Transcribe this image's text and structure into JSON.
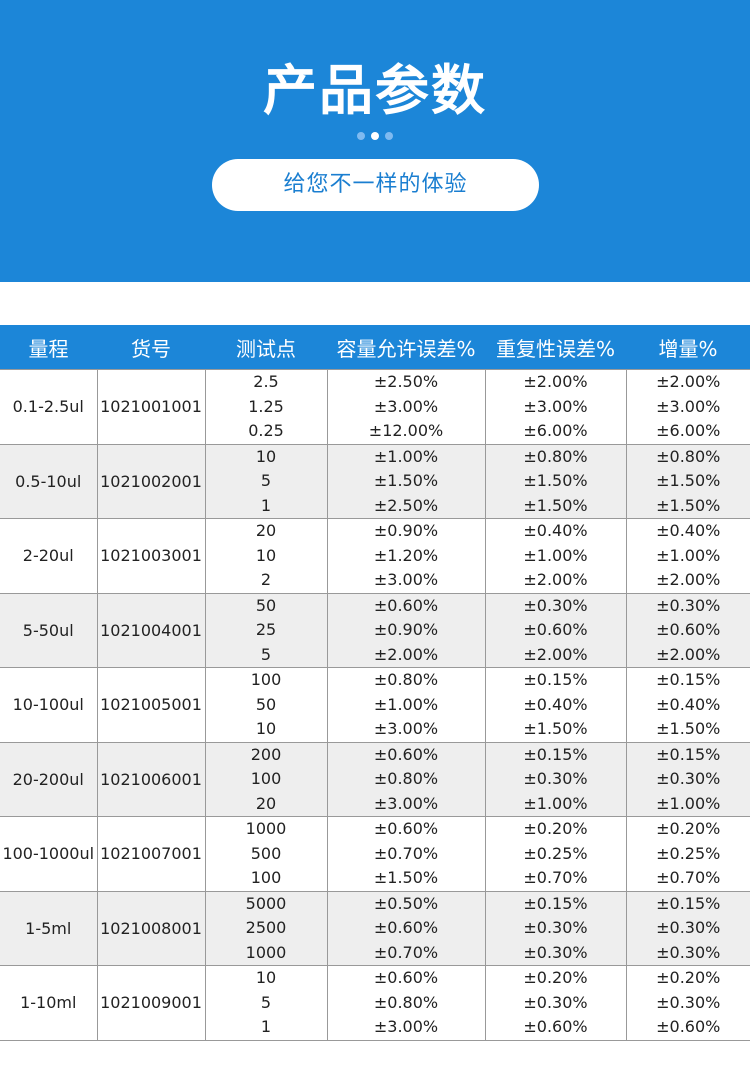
{
  "header": {
    "title": "产品参数",
    "subtitle": "给您不一样的体验"
  },
  "table": {
    "columns": [
      "量程",
      "货号",
      "测试点",
      "容量允许误差%",
      "重复性误差%",
      "增量%"
    ],
    "rows": [
      {
        "range": "0.1-2.5ul",
        "code": "1021001001",
        "points": [
          "2.5",
          "1.25",
          "0.25"
        ],
        "volume_error": [
          "±2.50%",
          "±3.00%",
          "±12.00%"
        ],
        "repeat_error": [
          "±2.00%",
          "±3.00%",
          "±6.00%"
        ],
        "increment": [
          "±2.00%",
          "±3.00%",
          "±6.00%"
        ]
      },
      {
        "range": "0.5-10ul",
        "code": "1021002001",
        "points": [
          "10",
          "5",
          "1"
        ],
        "volume_error": [
          "±1.00%",
          "±1.50%",
          "±2.50%"
        ],
        "repeat_error": [
          "±0.80%",
          "±1.50%",
          "±1.50%"
        ],
        "increment": [
          "±0.80%",
          "±1.50%",
          "±1.50%"
        ]
      },
      {
        "range": "2-20ul",
        "code": "1021003001",
        "points": [
          "20",
          "10",
          "2"
        ],
        "volume_error": [
          "±0.90%",
          "±1.20%",
          "±3.00%"
        ],
        "repeat_error": [
          "±0.40%",
          "±1.00%",
          "±2.00%"
        ],
        "increment": [
          "±0.40%",
          "±1.00%",
          "±2.00%"
        ]
      },
      {
        "range": "5-50ul",
        "code": "1021004001",
        "points": [
          "50",
          "25",
          "5"
        ],
        "volume_error": [
          "±0.60%",
          "±0.90%",
          "±2.00%"
        ],
        "repeat_error": [
          "±0.30%",
          "±0.60%",
          "±2.00%"
        ],
        "increment": [
          "±0.30%",
          "±0.60%",
          "±2.00%"
        ]
      },
      {
        "range": "10-100ul",
        "code": "1021005001",
        "points": [
          "100",
          "50",
          "10"
        ],
        "volume_error": [
          "±0.80%",
          "±1.00%",
          "±3.00%"
        ],
        "repeat_error": [
          "±0.15%",
          "±0.40%",
          "±1.50%"
        ],
        "increment": [
          "±0.15%",
          "±0.40%",
          "±1.50%"
        ]
      },
      {
        "range": "20-200ul",
        "code": "1021006001",
        "points": [
          "200",
          "100",
          "20"
        ],
        "volume_error": [
          "±0.60%",
          "±0.80%",
          "±3.00%"
        ],
        "repeat_error": [
          "±0.15%",
          "±0.30%",
          "±1.00%"
        ],
        "increment": [
          "±0.15%",
          "±0.30%",
          "±1.00%"
        ]
      },
      {
        "range": "100-1000ul",
        "code": "1021007001",
        "points": [
          "1000",
          "500",
          "100"
        ],
        "volume_error": [
          "±0.60%",
          "±0.70%",
          "±1.50%"
        ],
        "repeat_error": [
          "±0.20%",
          "±0.25%",
          "±0.70%"
        ],
        "increment": [
          "±0.20%",
          "±0.25%",
          "±0.70%"
        ]
      },
      {
        "range": "1-5ml",
        "code": "1021008001",
        "points": [
          "5000",
          "2500",
          "1000"
        ],
        "volume_error": [
          "±0.50%",
          "±0.60%",
          "±0.70%"
        ],
        "repeat_error": [
          "±0.15%",
          "±0.30%",
          "±0.30%"
        ],
        "increment": [
          "±0.15%",
          "±0.30%",
          "±0.30%"
        ]
      },
      {
        "range": "1-10ml",
        "code": "1021009001",
        "points": [
          "10",
          "5",
          "1"
        ],
        "volume_error": [
          "±0.60%",
          "±0.80%",
          "±3.00%"
        ],
        "repeat_error": [
          "±0.20%",
          "±0.30%",
          "±0.60%"
        ],
        "increment": [
          "±0.20%",
          "±0.30%",
          "±0.60%"
        ]
      }
    ]
  },
  "colors": {
    "brand_blue": "#1c86d8",
    "alt_row": "#eeeeee"
  }
}
